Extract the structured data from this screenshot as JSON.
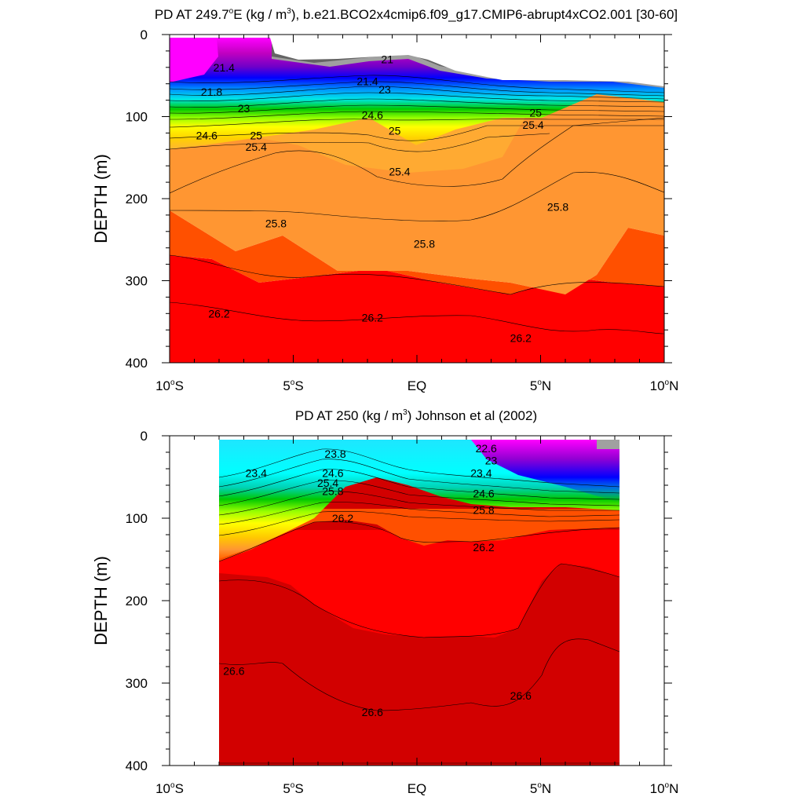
{
  "chart_data": [
    {
      "type": "contour",
      "title": "PD AT 249.7°E (kg / m3), b.e21.BCO2x4cmip6.f09_g17.CMIP6-abrupt4xCO2.001 [30-60]",
      "title_parts": {
        "main": "PD AT 249.7",
        "deg": "o",
        "rest1": "E (kg / m",
        "sup": "3",
        "rest2": "), b.e21.BCO2x4cmip6.f09_g17.CMIP6-abrupt4xCO2.001 [30-60]"
      },
      "ylabel": "DEPTH (m)",
      "xlabel": "",
      "xlim": [
        -10,
        10
      ],
      "ylim": [
        400,
        0
      ],
      "x_ticks": [
        -10,
        -5,
        0,
        5,
        10
      ],
      "x_tick_labels": [
        [
          "10",
          "o",
          "S"
        ],
        [
          "5",
          "o",
          "S"
        ],
        [
          "EQ",
          "",
          ""
        ],
        [
          "5",
          "o",
          "N"
        ],
        [
          "10",
          "o",
          "N"
        ]
      ],
      "y_ticks": [
        0,
        100,
        200,
        300,
        400
      ],
      "y_tick_labels": [
        "0",
        "100",
        "200",
        "300",
        "400"
      ],
      "data_xlim": [
        -10,
        10
      ],
      "surface": {
        "x": [
          -10,
          -8,
          -6,
          -4,
          -2,
          -1,
          0,
          1,
          2,
          4,
          6,
          8,
          10
        ],
        "depth": [
          0,
          0,
          0,
          30,
          30,
          28,
          25,
          30,
          45,
          58,
          60,
          58,
          62
        ]
      },
      "contours": [
        {
          "level": 25.8,
          "x": [
            -10,
            -8,
            -6,
            -4,
            -2,
            0,
            2,
            4,
            5,
            6,
            8,
            10
          ],
          "depth": [
            228,
            218,
            205,
            210,
            218,
            222,
            220,
            218,
            210,
            180,
            168,
            175
          ]
        },
        {
          "level": 26.2,
          "x": [
            -10,
            -8,
            -6,
            -4,
            -2,
            0,
            2,
            4,
            6,
            8,
            10
          ],
          "depth": [
            325,
            330,
            345,
            345,
            340,
            338,
            345,
            360,
            365,
            350,
            365
          ]
        }
      ],
      "contour_labels": [
        {
          "text": "21",
          "x": -1.2,
          "depth": 30
        },
        {
          "text": "21.4",
          "x": -7.8,
          "depth": 40
        },
        {
          "text": "21.4",
          "x": -2.0,
          "depth": 57
        },
        {
          "text": "21.8",
          "x": -8.3,
          "depth": 70
        },
        {
          "text": "23",
          "x": -7.0,
          "depth": 90
        },
        {
          "text": "23",
          "x": -1.3,
          "depth": 67
        },
        {
          "text": "24.6",
          "x": -8.5,
          "depth": 123
        },
        {
          "text": "24.6",
          "x": -1.8,
          "depth": 98
        },
        {
          "text": "25",
          "x": -6.5,
          "depth": 123
        },
        {
          "text": "25",
          "x": -0.9,
          "depth": 117
        },
        {
          "text": "25",
          "x": 4.8,
          "depth": 95
        },
        {
          "text": "25.4",
          "x": -6.5,
          "depth": 137
        },
        {
          "text": "25.4",
          "x": -0.7,
          "depth": 167
        },
        {
          "text": "25.4",
          "x": 4.7,
          "depth": 110
        },
        {
          "text": "25.8",
          "x": -5.7,
          "depth": 230
        },
        {
          "text": "25.8",
          "x": 0.3,
          "depth": 255
        },
        {
          "text": "25.8",
          "x": 5.7,
          "depth": 210
        },
        {
          "text": "26.2",
          "x": -8.0,
          "depth": 340
        },
        {
          "text": "26.2",
          "x": -1.8,
          "depth": 345
        },
        {
          "text": "26.2",
          "x": 4.2,
          "depth": 370
        }
      ]
    },
    {
      "type": "contour",
      "title": "PD AT 250 (kg / m3) Johnson et al (2002)",
      "title_parts": {
        "main": "PD AT 250 (kg / m",
        "deg": "",
        "rest1": "",
        "sup": "3",
        "rest2": ") Johnson et al (2002)"
      },
      "ylabel": "DEPTH (m)",
      "xlabel": "",
      "xlim": [
        -10,
        10
      ],
      "ylim": [
        400,
        0
      ],
      "x_ticks": [
        -10,
        -5,
        0,
        5,
        10
      ],
      "x_tick_labels": [
        [
          "10",
          "o",
          "S"
        ],
        [
          "5",
          "o",
          "S"
        ],
        [
          "EQ",
          "",
          ""
        ],
        [
          "5",
          "o",
          "N"
        ],
        [
          "10",
          "o",
          "N"
        ]
      ],
      "y_ticks": [
        0,
        100,
        200,
        300,
        400
      ],
      "y_tick_labels": [
        "0",
        "100",
        "200",
        "300",
        "400"
      ],
      "data_xlim": [
        -8,
        8.2
      ],
      "contours": [
        {
          "level": 26.2,
          "x": [
            -8,
            -7,
            -6,
            -5,
            -4,
            -3,
            -2,
            -1,
            0,
            1,
            2,
            3,
            4,
            5,
            6,
            7,
            8.2
          ],
          "depth": [
            148,
            135,
            120,
            100,
            80,
            72,
            78,
            98,
            128,
            130,
            128,
            128,
            130,
            120,
            110,
            112,
            110
          ]
        },
        {
          "level": 26.6,
          "x": [
            -8,
            -7,
            -6,
            -5,
            -4,
            -3,
            -2,
            -1,
            0,
            1,
            2,
            3,
            4,
            5,
            6,
            7,
            8.2
          ],
          "depth": [
            275,
            280,
            272,
            282,
            310,
            328,
            333,
            330,
            328,
            318,
            320,
            330,
            332,
            300,
            235,
            240,
            260
          ]
        }
      ],
      "contour_labels": [
        {
          "text": "23.4",
          "x": -6.5,
          "depth": 45
        },
        {
          "text": "23.8",
          "x": -3.3,
          "depth": 22
        },
        {
          "text": "24.6",
          "x": -3.4,
          "depth": 45
        },
        {
          "text": "25.4",
          "x": -3.6,
          "depth": 57
        },
        {
          "text": "25.8",
          "x": -3.4,
          "depth": 67
        },
        {
          "text": "22.6",
          "x": 2.8,
          "depth": 15
        },
        {
          "text": "23",
          "x": 3.0,
          "depth": 30
        },
        {
          "text": "23.4",
          "x": 2.6,
          "depth": 45
        },
        {
          "text": "24.6",
          "x": 2.7,
          "depth": 70
        },
        {
          "text": "25.8",
          "x": 2.7,
          "depth": 90
        },
        {
          "text": "26.2",
          "x": -3.0,
          "depth": 100
        },
        {
          "text": "26.2",
          "x": 2.7,
          "depth": 135
        },
        {
          "text": "26.6",
          "x": -7.4,
          "depth": 285
        },
        {
          "text": "26.6",
          "x": -1.8,
          "depth": 335
        },
        {
          "text": "26.6",
          "x": 4.2,
          "depth": 315
        }
      ]
    }
  ],
  "colors": {
    "magenta": "#ff00ff",
    "purple": "#9400d3",
    "blue": "#0000ff",
    "cyan": "#00ffff",
    "green": "#00c800",
    "yellow": "#ffff00",
    "orange": "#ff9632",
    "dark_orange": "#ff5000",
    "red": "#ff0000",
    "dark_red": "#d20000",
    "gray": "#a0a0a0",
    "dark_gray": "#646464"
  }
}
